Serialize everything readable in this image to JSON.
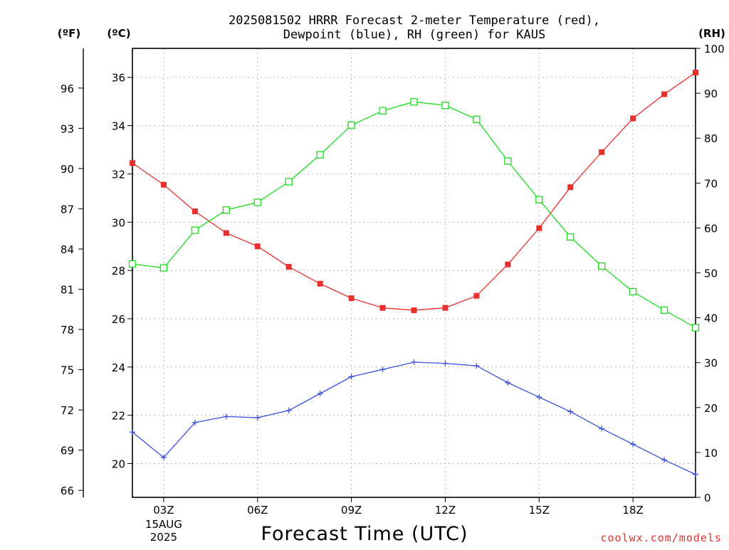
{
  "chart_data": {
    "type": "line",
    "title_lines": [
      "2025081502 HRRR Forecast 2-meter Temperature (red),",
      "Dewpoint (blue), RH (green) for KAUS"
    ],
    "xlabel": "Forecast Time (UTC)",
    "credit": "coolwx.com/models",
    "x_axis": {
      "range_hours": [
        2,
        20
      ],
      "ticks": [
        {
          "hour": 3,
          "label": "03Z",
          "sublabels": [
            "15AUG",
            "2025"
          ]
        },
        {
          "hour": 6,
          "label": "06Z",
          "sublabels": []
        },
        {
          "hour": 9,
          "label": "09Z",
          "sublabels": []
        },
        {
          "hour": 12,
          "label": "12Z",
          "sublabels": []
        },
        {
          "hour": 15,
          "label": "15Z",
          "sublabels": []
        },
        {
          "hour": 18,
          "label": "18Z",
          "sublabels": []
        }
      ]
    },
    "y_celsius": {
      "unit_label": "(ºC)",
      "range": [
        18.6,
        37.2
      ],
      "ticks": [
        20,
        22,
        24,
        26,
        28,
        30,
        32,
        34,
        36
      ],
      "tick_labels": [
        "20",
        "22",
        "24",
        "26",
        "28",
        "30",
        "32",
        "34",
        "36"
      ]
    },
    "y_fahrenheit": {
      "unit_label": "(ºF)",
      "ticks": [
        66,
        69,
        72,
        75,
        78,
        81,
        84,
        87,
        90,
        93,
        96
      ],
      "tick_labels": [
        "66",
        "69",
        "72",
        "75",
        "78",
        "81",
        "84",
        "87",
        "90",
        "93",
        "96"
      ]
    },
    "y_rh": {
      "unit_label": "(RH)",
      "range": [
        0,
        100
      ],
      "ticks": [
        0,
        10,
        20,
        30,
        40,
        50,
        60,
        70,
        80,
        90,
        100
      ],
      "tick_labels": [
        "0",
        "10",
        "20",
        "30",
        "40",
        "50",
        "60",
        "70",
        "80",
        "90",
        "100"
      ]
    },
    "grid": true,
    "hours": [
      2,
      3,
      4,
      5,
      6,
      7,
      8,
      9,
      10,
      11,
      12,
      13,
      14,
      15,
      16,
      17,
      18,
      19,
      20
    ],
    "series": [
      {
        "name": "Temperature",
        "axis": "celsius",
        "color": "#e8302e",
        "marker": "filled-square",
        "values": [
          32.45,
          31.55,
          30.45,
          29.55,
          29.0,
          28.15,
          27.45,
          26.85,
          26.45,
          26.35,
          26.45,
          26.95,
          28.25,
          29.75,
          31.45,
          32.9,
          34.3,
          35.3,
          36.2
        ]
      },
      {
        "name": "Dewpoint",
        "axis": "celsius",
        "color": "#3a4fe6",
        "marker": "plus",
        "values": [
          21.3,
          20.25,
          21.7,
          21.95,
          21.9,
          22.2,
          22.9,
          23.6,
          23.9,
          24.2,
          24.15,
          24.05,
          23.35,
          22.75,
          22.15,
          21.45,
          20.8,
          20.15,
          19.55
        ]
      },
      {
        "name": "RH",
        "axis": "rh",
        "color": "#1bdc1b",
        "marker": "open-square",
        "values": [
          52.0,
          51.1,
          59.5,
          64.0,
          65.7,
          70.3,
          76.3,
          82.9,
          86.1,
          88.1,
          87.3,
          84.2,
          74.9,
          66.3,
          58.0,
          51.5,
          45.8,
          41.7,
          37.8
        ]
      }
    ]
  }
}
